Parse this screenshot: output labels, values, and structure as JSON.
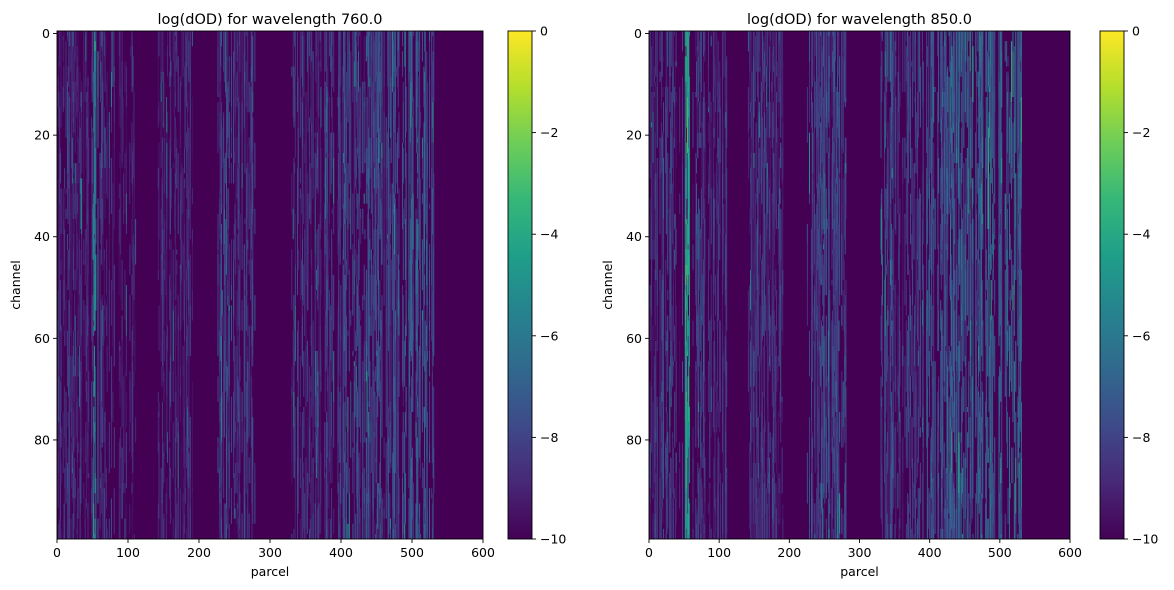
{
  "chart_data": [
    {
      "type": "heatmap",
      "title": "log(dOD) for wavelength 760.0",
      "xlabel": "parcel",
      "ylabel": "channel",
      "xlim": [
        0,
        600
      ],
      "ylim": [
        0,
        99
      ],
      "y_inverted": true,
      "x_ticks": [
        0,
        100,
        200,
        300,
        400,
        500,
        600
      ],
      "y_ticks": [
        0,
        20,
        40,
        60,
        80
      ],
      "colorbar": {
        "colormap": "viridis",
        "range": [
          -10,
          0
        ],
        "ticks": [
          0,
          -2,
          -4,
          -6,
          -8,
          -10
        ]
      },
      "background_value": -10,
      "active_parcel_bands": [
        {
          "parcels": [
            1,
            12
          ],
          "level": -8.6
        },
        {
          "parcels": [
            14,
            50
          ],
          "level": -8.8
        },
        {
          "parcels": [
            51,
            58
          ],
          "level": -6.0
        },
        {
          "parcels": [
            60,
            80
          ],
          "level": -8.8
        },
        {
          "parcels": [
            84,
            110
          ],
          "level": -9.0
        },
        {
          "parcels": [
            140,
            190
          ],
          "level": -8.9
        },
        {
          "parcels": [
            225,
            280
          ],
          "level": -8.4
        },
        {
          "parcels": [
            330,
            390
          ],
          "level": -8.5
        },
        {
          "parcels": [
            395,
            470
          ],
          "level": -7.9
        },
        {
          "parcels": [
            470,
            530
          ],
          "level": -7.6
        }
      ]
    },
    {
      "type": "heatmap",
      "title": "log(dOD) for wavelength 850.0",
      "xlabel": "parcel",
      "ylabel": "channel",
      "xlim": [
        0,
        600
      ],
      "ylim": [
        0,
        99
      ],
      "y_inverted": true,
      "x_ticks": [
        0,
        100,
        200,
        300,
        400,
        500,
        600
      ],
      "y_ticks": [
        0,
        20,
        40,
        60,
        80
      ],
      "colorbar": {
        "colormap": "viridis",
        "range": [
          -10,
          0
        ],
        "ticks": [
          0,
          -2,
          -4,
          -6,
          -8,
          -10
        ]
      },
      "background_value": -10,
      "active_parcel_bands": [
        {
          "parcels": [
            1,
            12
          ],
          "level": -8.2
        },
        {
          "parcels": [
            14,
            50
          ],
          "level": -8.3
        },
        {
          "parcels": [
            51,
            58
          ],
          "level": -5.0
        },
        {
          "parcels": [
            60,
            80
          ],
          "level": -8.4
        },
        {
          "parcels": [
            84,
            110
          ],
          "level": -8.6
        },
        {
          "parcels": [
            140,
            190
          ],
          "level": -8.6
        },
        {
          "parcels": [
            225,
            280
          ],
          "level": -7.9
        },
        {
          "parcels": [
            330,
            390
          ],
          "level": -8.0
        },
        {
          "parcels": [
            395,
            470
          ],
          "level": -7.4
        },
        {
          "parcels": [
            470,
            530
          ],
          "level": -7.0
        }
      ]
    }
  ]
}
